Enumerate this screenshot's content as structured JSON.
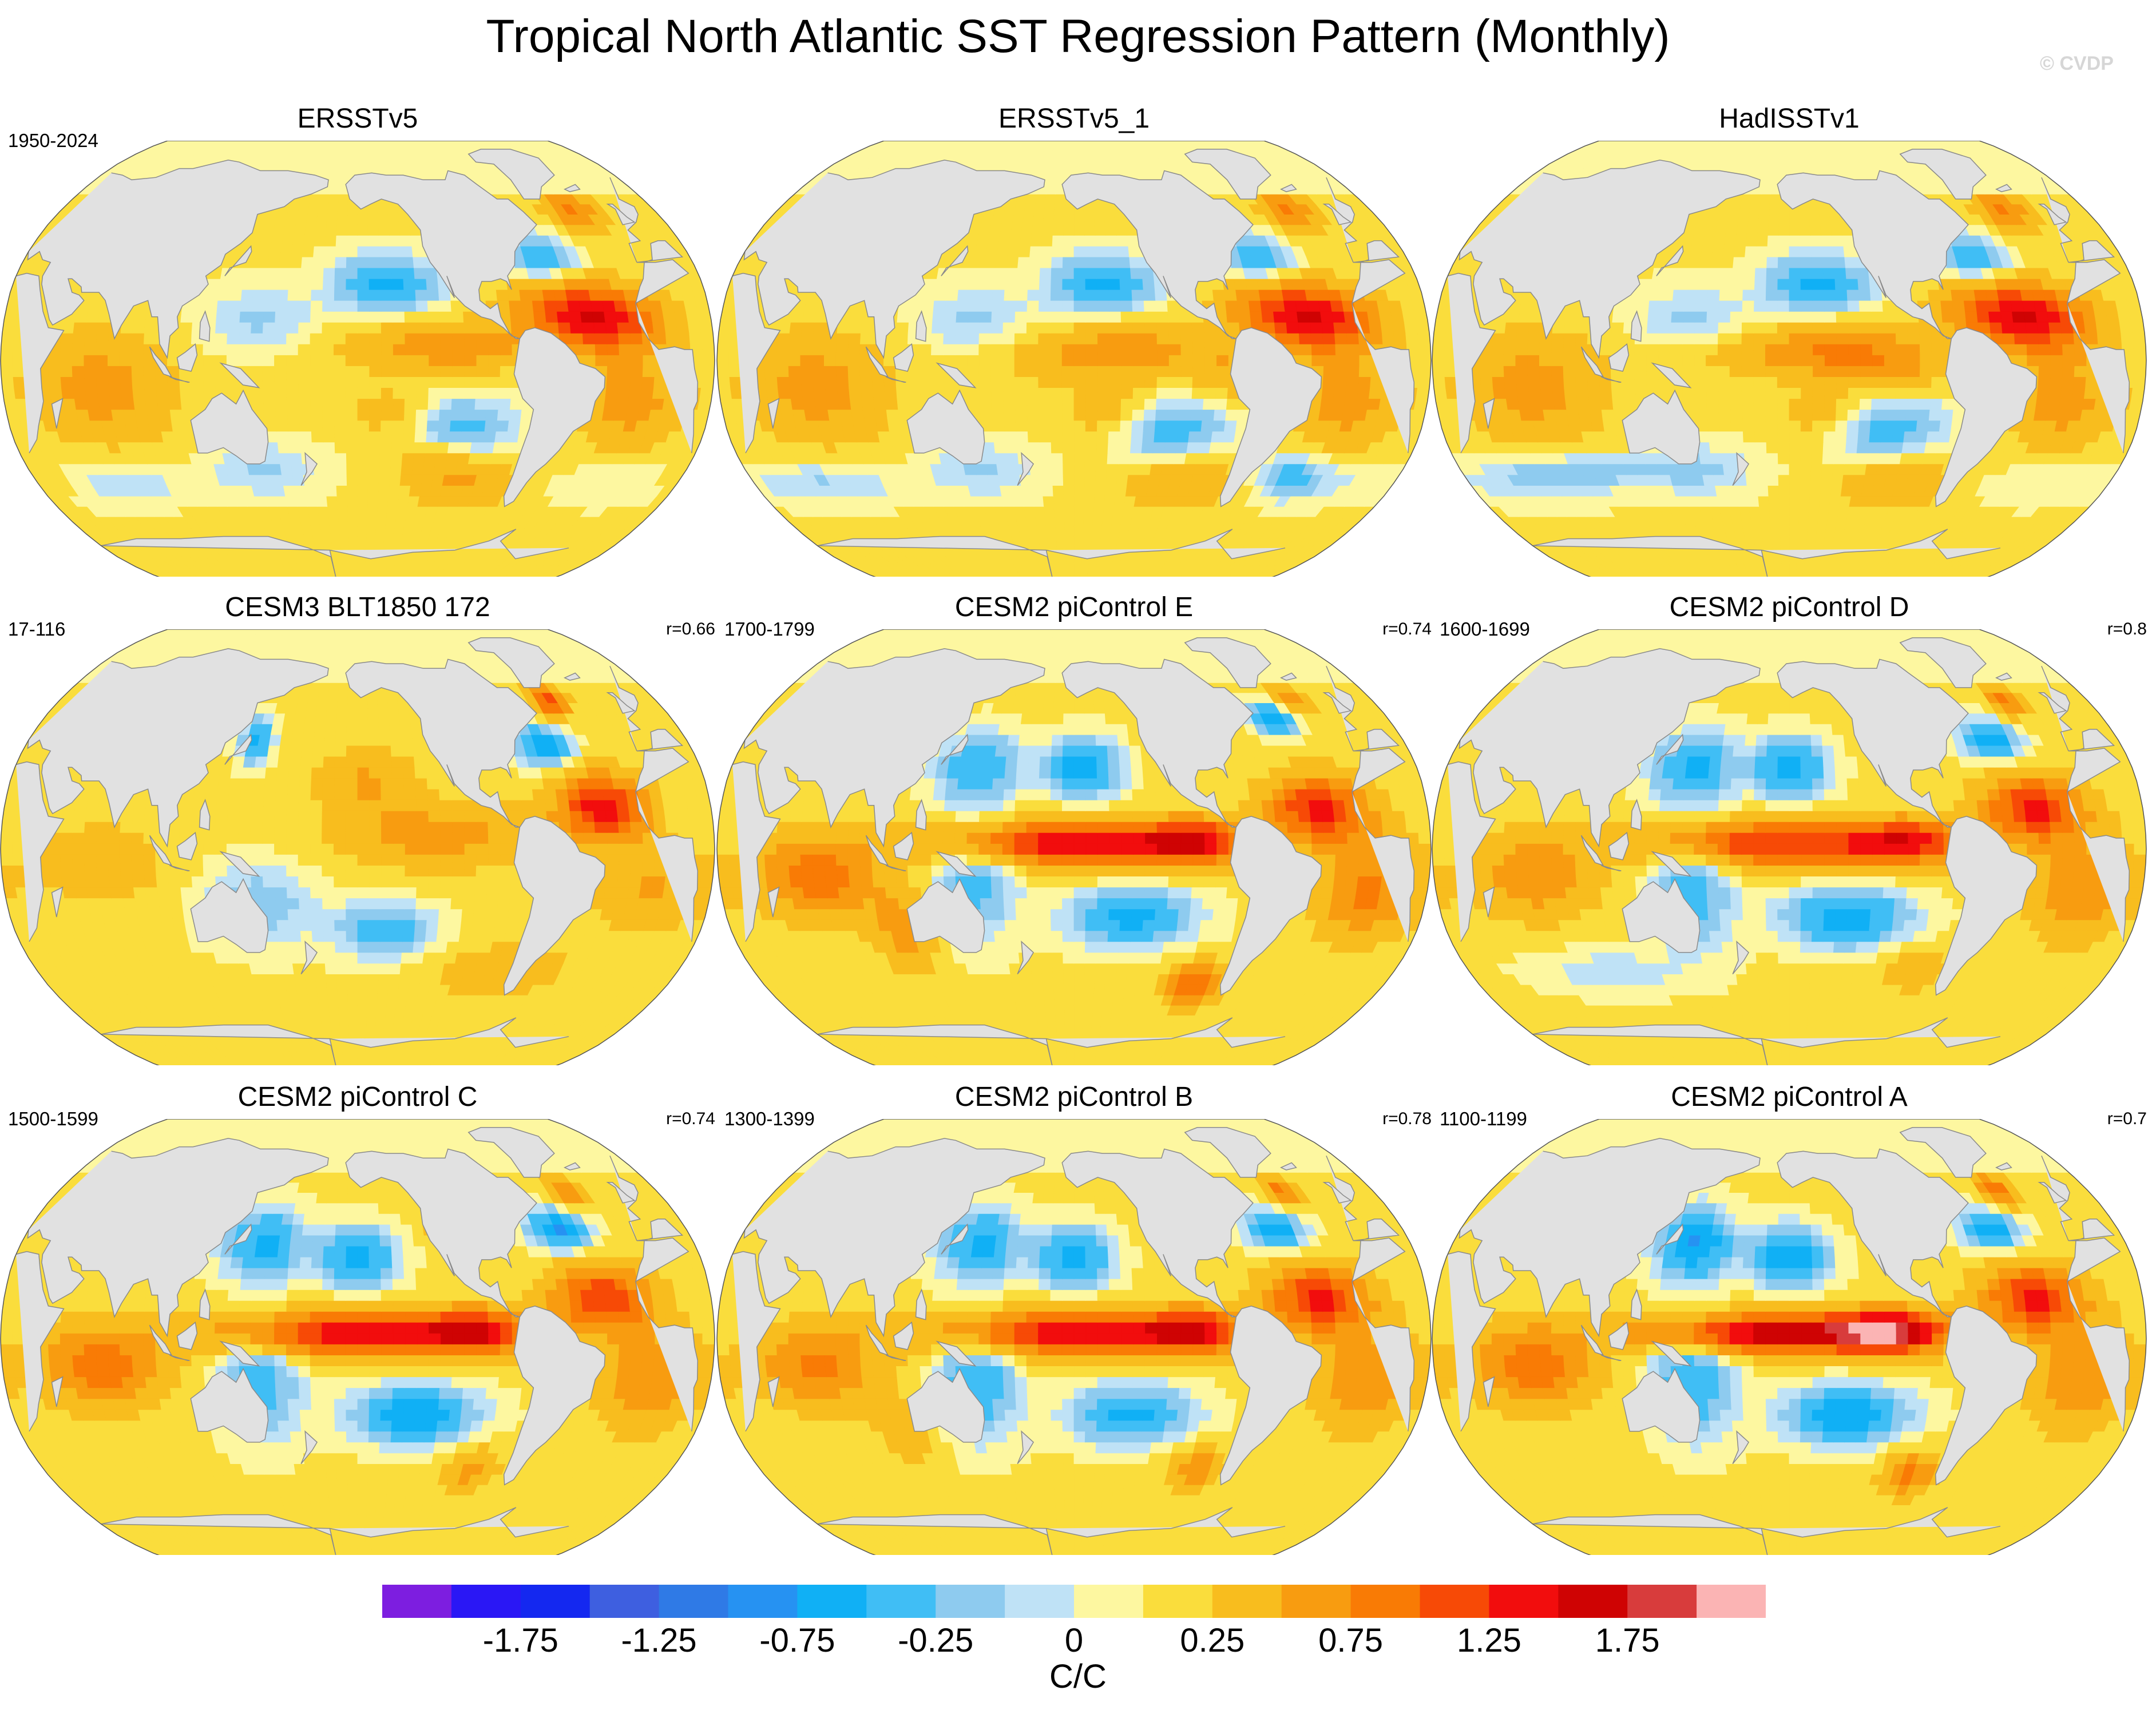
{
  "title": "Tropical North Atlantic SST Regression Pattern (Monthly)",
  "watermark": "© CVDP",
  "colors": {
    "land": "#e1e1e1",
    "coastline": "#8a8a8a",
    "map_border": "#555555"
  },
  "panels": [
    {
      "title": "ERSSTv5",
      "period": "1950-2024",
      "r": "",
      "pattern": "obs_a"
    },
    {
      "title": "ERSSTv5_1",
      "period": "",
      "r": "",
      "pattern": "obs_b"
    },
    {
      "title": "HadISSTv1",
      "period": "",
      "r": "",
      "pattern": "obs_c"
    },
    {
      "title": "CESM3 BLT1850 172",
      "period": "17-116",
      "r": "r=0.66",
      "pattern": "cesm3"
    },
    {
      "title": "CESM2 piControl E",
      "period": "1700-1799",
      "r": "r=0.74",
      "pattern": "ctl_e"
    },
    {
      "title": "CESM2 piControl D",
      "period": "1600-1699",
      "r": "r=0.8",
      "pattern": "ctl_d"
    },
    {
      "title": "CESM2 piControl C",
      "period": "1500-1599",
      "r": "r=0.74",
      "pattern": "ctl_c"
    },
    {
      "title": "CESM2 piControl B",
      "period": "1300-1399",
      "r": "r=0.78",
      "pattern": "ctl_b"
    },
    {
      "title": "CESM2 piControl A",
      "period": "1100-1199",
      "r": "r=0.7",
      "pattern": "ctl_a"
    }
  ],
  "chart_data": {
    "type": "heatmap",
    "title": "Tropical North Atlantic SST Regression Pattern (Monthly)",
    "projection": "Robinson (global)",
    "units": "C/C",
    "panels": [
      "ERSSTv5",
      "ERSSTv5_1",
      "HadISSTv1",
      "CESM3 BLT1850 172",
      "CESM2 piControl E",
      "CESM2 piControl D",
      "CESM2 piControl C",
      "CESM2 piControl B",
      "CESM2 piControl A"
    ],
    "colorbar": {
      "levels": [
        -2.0,
        -1.75,
        -1.5,
        -1.25,
        -1.0,
        -0.75,
        -0.5,
        -0.25,
        -0.1,
        0,
        0.1,
        0.25,
        0.5,
        0.75,
        1.0,
        1.25,
        1.5,
        1.75,
        2.0
      ],
      "colors": [
        "#7d1ee0",
        "#2a17f5",
        "#1428f0",
        "#3e5fe0",
        "#2f7ae6",
        "#2692f2",
        "#10b0f5",
        "#40bef5",
        "#8ecbef",
        "#bfe2f6",
        "#fdf7a0",
        "#fadd3c",
        "#f8bd1e",
        "#f89c10",
        "#f97b05",
        "#f74a06",
        "#f20d0d",
        "#cf0303",
        "#d83c3c",
        "#fbb4b4"
      ],
      "tick_labels": [
        "-1.75",
        "-1.25",
        "-0.75",
        "-0.25",
        "0",
        "0.25",
        "0.75",
        "1.25",
        "1.75"
      ],
      "tick_values": [
        -1.75,
        -1.25,
        -0.75,
        -0.25,
        0,
        0.25,
        0.75,
        1.25,
        1.75
      ]
    }
  }
}
